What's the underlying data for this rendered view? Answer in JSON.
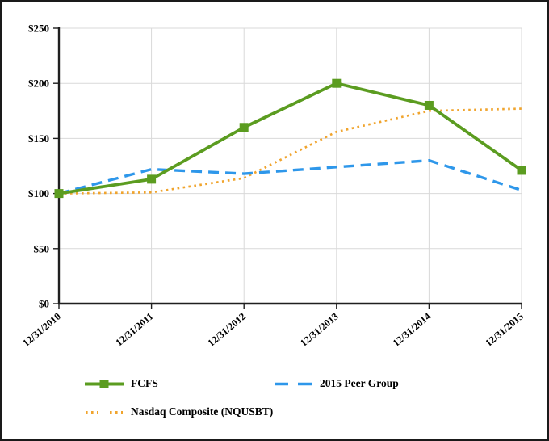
{
  "chart_data": {
    "type": "line",
    "title": "",
    "xlabel": "",
    "ylabel": "",
    "categories": [
      "12/31/2010",
      "12/31/2011",
      "12/31/2012",
      "12/31/2013",
      "12/31/2014",
      "12/31/2015"
    ],
    "y_ticks": [
      "$0",
      "$50",
      "$100",
      "$150",
      "$200",
      "$250"
    ],
    "y_tick_values": [
      0,
      50,
      100,
      150,
      200,
      250
    ],
    "ylim": [
      0,
      250
    ],
    "grid": true,
    "legend_position": "bottom",
    "series": [
      {
        "name": "FCFS",
        "style": "solid-square",
        "color": "#5b9c20",
        "values": [
          100,
          113,
          160,
          200,
          180,
          121
        ]
      },
      {
        "name": "2015 Peer Group",
        "style": "dashed",
        "color": "#2e97ea",
        "values": [
          100,
          122,
          118,
          124,
          130,
          103
        ]
      },
      {
        "name": "Nasdaq Composite (NQUSBT)",
        "style": "dotted",
        "color": "#f0a42d",
        "values": [
          100,
          101,
          114,
          156,
          175,
          177
        ]
      }
    ],
    "colors": {
      "axis": "#1f1f1f",
      "gridline": "#d9d9d9",
      "background": "#ffffff"
    }
  }
}
